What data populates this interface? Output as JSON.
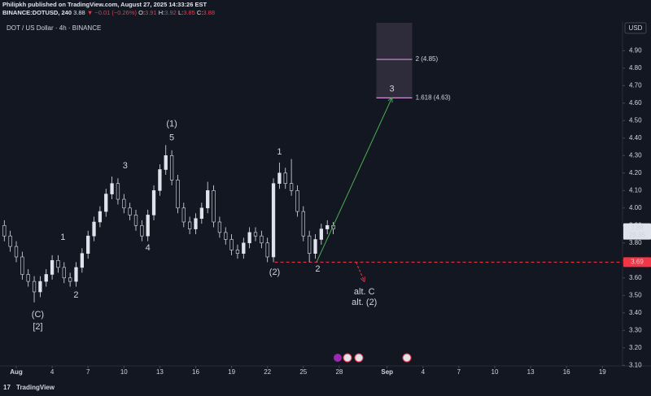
{
  "header": {
    "published": "Philipkh published on TradingView.com, August 27, 2025 14:33:26 EST",
    "symbol": "BINANCE:DOTUSD, 240",
    "last": "3.88",
    "change": "▼ −0.01 (−0.26%)",
    "o_label": "O:",
    "o": "3.91",
    "h_label": "H:",
    "h": "3.92",
    "l_label": "L:",
    "l": "3.85",
    "c_label": "C:",
    "c": "3.88"
  },
  "footer": {
    "brand": "TradingView"
  },
  "chart_data": {
    "type": "candlestick",
    "title": "DOT / US Dollar · 4h · BINANCE",
    "currency": "USD",
    "up_color": "#e0e3eb",
    "down_color": "#e0e3eb",
    "x": [
      0,
      0.5,
      1,
      1.5,
      2,
      2.5,
      3,
      3.5,
      4,
      4.5,
      5,
      5.5,
      6,
      6.5,
      7,
      7.5,
      8,
      8.5,
      9,
      9.5,
      10,
      10.5,
      11,
      11.5,
      12,
      12.5,
      13,
      13.5,
      14,
      14.5,
      15,
      15.5,
      16,
      16.5,
      17,
      17.5,
      18,
      18.5,
      19,
      19.5,
      20,
      20.5,
      21,
      21.5,
      22,
      22.5,
      23,
      23.5,
      24,
      24.5,
      25,
      25.5,
      26,
      26.5,
      27,
      27.5
    ],
    "open": [
      3.9,
      3.84,
      3.78,
      3.72,
      3.62,
      3.58,
      3.52,
      3.58,
      3.62,
      3.7,
      3.66,
      3.6,
      3.58,
      3.66,
      3.74,
      3.84,
      3.92,
      3.98,
      4.08,
      4.14,
      4.05,
      4.0,
      3.96,
      3.9,
      3.84,
      3.96,
      4.1,
      4.22,
      4.3,
      4.16,
      4.0,
      3.92,
      3.88,
      3.94,
      4.0,
      4.1,
      3.92,
      3.86,
      3.82,
      3.76,
      3.74,
      3.8,
      3.86,
      3.84,
      3.8,
      3.72,
      4.14,
      4.2,
      4.14,
      4.1,
      3.98,
      3.84,
      3.74,
      3.82,
      3.88,
      3.9
    ],
    "high": [
      3.93,
      3.87,
      3.81,
      3.75,
      3.65,
      3.61,
      3.61,
      3.65,
      3.73,
      3.73,
      3.69,
      3.63,
      3.69,
      3.77,
      3.87,
      3.95,
      4.01,
      4.11,
      4.18,
      4.17,
      4.08,
      4.03,
      3.99,
      3.93,
      3.99,
      4.13,
      4.25,
      4.36,
      4.33,
      4.19,
      4.03,
      3.95,
      3.97,
      4.03,
      4.15,
      4.13,
      3.95,
      3.89,
      3.85,
      3.79,
      3.83,
      3.89,
      3.89,
      3.87,
      3.83,
      4.17,
      4.26,
      4.23,
      4.28,
      4.13,
      4.01,
      3.87,
      3.85,
      3.91,
      3.93,
      3.92
    ],
    "low": [
      3.81,
      3.75,
      3.69,
      3.59,
      3.55,
      3.46,
      3.49,
      3.55,
      3.59,
      3.63,
      3.57,
      3.55,
      3.55,
      3.63,
      3.71,
      3.81,
      3.89,
      3.95,
      4.05,
      4.02,
      3.97,
      3.93,
      3.87,
      3.81,
      3.81,
      3.93,
      4.07,
      4.19,
      4.13,
      3.97,
      3.89,
      3.85,
      3.85,
      3.91,
      3.97,
      3.89,
      3.83,
      3.79,
      3.73,
      3.71,
      3.71,
      3.77,
      3.81,
      3.77,
      3.69,
      3.69,
      4.11,
      4.11,
      4.07,
      3.95,
      3.81,
      3.69,
      3.71,
      3.79,
      3.85,
      3.85
    ],
    "close": [
      3.84,
      3.78,
      3.72,
      3.62,
      3.58,
      3.52,
      3.58,
      3.62,
      3.7,
      3.66,
      3.6,
      3.58,
      3.66,
      3.74,
      3.84,
      3.92,
      3.98,
      4.08,
      4.14,
      4.05,
      4.0,
      3.96,
      3.9,
      3.84,
      3.96,
      4.1,
      4.22,
      4.3,
      4.16,
      4.0,
      3.92,
      3.88,
      3.94,
      4.0,
      4.1,
      3.92,
      3.86,
      3.82,
      3.76,
      3.74,
      3.8,
      3.86,
      3.84,
      3.8,
      3.72,
      4.14,
      4.2,
      4.14,
      4.1,
      3.98,
      3.84,
      3.74,
      3.82,
      3.88,
      3.9,
      3.88
    ],
    "xlim": [
      -0.36,
      51.68
    ],
    "xticks": [
      {
        "value": 1,
        "label": "Aug"
      },
      4,
      7,
      10,
      13,
      16,
      19,
      22,
      25,
      28,
      {
        "value": 32,
        "label": "Sep"
      },
      {
        "value": 35,
        "label": "4"
      },
      {
        "value": 38,
        "label": "7"
      },
      {
        "value": 41,
        "label": "10"
      },
      {
        "value": 44,
        "label": "13"
      },
      {
        "value": 47,
        "label": "16"
      },
      {
        "value": 50,
        "label": "19"
      }
    ],
    "ylim": [
      3.05,
      5.19
    ],
    "yticks": [
      {
        "value": 3.1,
        "label": "3.10"
      },
      {
        "value": 3.2,
        "label": "3.20"
      },
      {
        "value": 3.3,
        "label": "3.30"
      },
      {
        "value": 3.4,
        "label": "3.40"
      },
      {
        "value": 3.5,
        "label": "3.50"
      },
      {
        "value": 3.6,
        "label": "3.60"
      },
      {
        "value": 3.7,
        "label": "3.70"
      },
      {
        "value": 3.8,
        "label": "3.80"
      },
      {
        "value": 3.9,
        "label": "3.90"
      },
      {
        "value": 4.0,
        "label": "4.00"
      },
      {
        "value": 4.1,
        "label": "4.10"
      },
      {
        "value": 4.2,
        "label": "4.20"
      },
      {
        "value": 4.3,
        "label": "4.30"
      },
      {
        "value": 4.4,
        "label": "4.40"
      },
      {
        "value": 4.5,
        "label": "4.50"
      },
      {
        "value": 4.6,
        "label": "4.60"
      },
      {
        "value": 4.7,
        "label": "4.70"
      },
      {
        "value": 4.8,
        "label": "4.80"
      },
      {
        "value": 4.9,
        "label": "4.90"
      }
    ],
    "grid": false,
    "last_price": 3.88,
    "countdown": "26:35",
    "level": {
      "value": 3.69,
      "from_x": 22.6,
      "color": "#f23645"
    },
    "projection_box": {
      "x": [
        31.1,
        34.1
      ],
      "y": [
        4.63,
        5.06
      ]
    },
    "fib_levels": [
      {
        "label": "2 (4.85)",
        "value": 4.85
      },
      {
        "label": "1.618 (4.63)",
        "value": 4.63
      }
    ],
    "target_arrow": {
      "from": [
        26.1,
        3.69
      ],
      "to": [
        32.4,
        4.63
      ],
      "color": "#4caf50"
    },
    "alt_arrow": {
      "from": [
        29.4,
        3.69
      ],
      "to": [
        30.1,
        3.58
      ],
      "color": "#f23645"
    },
    "annotations": [
      {
        "text": "(1)",
        "x": 14,
        "y": 4.48,
        "color": "#90bff9"
      },
      {
        "text": "5",
        "x": 14,
        "y": 4.4,
        "color": "#b4a7d6"
      },
      {
        "text": "3",
        "x": 10.1,
        "y": 4.24,
        "color": "#b4a7d6"
      },
      {
        "text": "1",
        "x": 4.9,
        "y": 3.83,
        "color": "#b4a7d6"
      },
      {
        "text": "2",
        "x": 6.0,
        "y": 3.5,
        "color": "#b4a7d6"
      },
      {
        "text": "4",
        "x": 12.0,
        "y": 3.77,
        "color": "#b4a7d6"
      },
      {
        "text": "(C)",
        "x": 2.8,
        "y": 3.39,
        "color": "#90bff9"
      },
      {
        "text": "[2]",
        "x": 2.8,
        "y": 3.32,
        "color": "#4fc3c7"
      },
      {
        "text": "1",
        "x": 23.0,
        "y": 4.32,
        "color": "#b4a7d6"
      },
      {
        "text": "(2)",
        "x": 22.6,
        "y": 3.63,
        "color": "#90bff9"
      },
      {
        "text": "2",
        "x": 26.2,
        "y": 3.65,
        "color": "#b4a7d6"
      },
      {
        "text": "alt. C",
        "x": 30.1,
        "y": 3.52,
        "color": "#90bff9"
      },
      {
        "text": "alt. (2)",
        "x": 30.1,
        "y": 3.46,
        "color": "#90bff9"
      },
      {
        "text": "3",
        "x": 32.4,
        "y": 4.68,
        "color": "#b4a7d6"
      }
    ]
  }
}
